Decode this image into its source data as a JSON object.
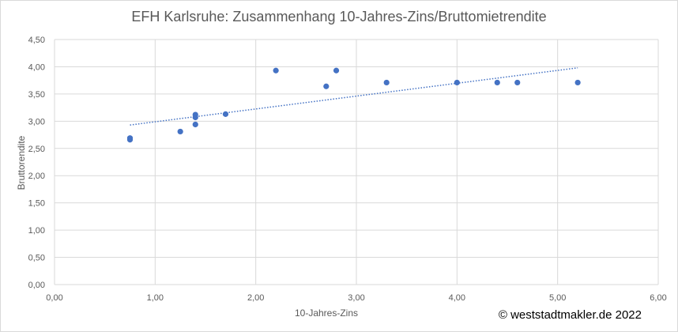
{
  "chart_data": {
    "type": "scatter",
    "title": "EFH Karlsruhe: Zusammenhang 10-Jahres-Zins/Bruttomietrendite",
    "xlabel": "10-Jahres-Zins",
    "ylabel": "Bruttorendite",
    "xlim": [
      0,
      6
    ],
    "ylim": [
      0,
      4.5
    ],
    "x_ticks": [
      "0,00",
      "1,00",
      "2,00",
      "3,00",
      "4,00",
      "5,00",
      "6,00"
    ],
    "y_ticks": [
      "0,00",
      "0,50",
      "1,00",
      "1,50",
      "2,00",
      "2,50",
      "3,00",
      "3,50",
      "4,00",
      "4,50"
    ],
    "grid": true,
    "legend": "none",
    "marker_color": "#4472c4",
    "series": [
      {
        "x": [
          0.75,
          0.75,
          1.25,
          1.4,
          1.4,
          1.4,
          1.7,
          2.2,
          2.7,
          2.8,
          3.3,
          4.0,
          4.4,
          4.6,
          5.2
        ],
        "y": [
          2.69,
          2.66,
          2.81,
          2.94,
          3.07,
          3.12,
          3.13,
          3.93,
          3.64,
          3.93,
          3.71,
          3.71,
          3.71,
          3.71,
          3.71
        ]
      }
    ],
    "trendline": {
      "type": "linear",
      "style": "dotted",
      "color": "#4472c4",
      "x": [
        0.75,
        5.2
      ],
      "y": [
        2.93,
        3.98
      ]
    }
  },
  "footer": {
    "copyright": "© weststadtmakler.de 2022"
  }
}
